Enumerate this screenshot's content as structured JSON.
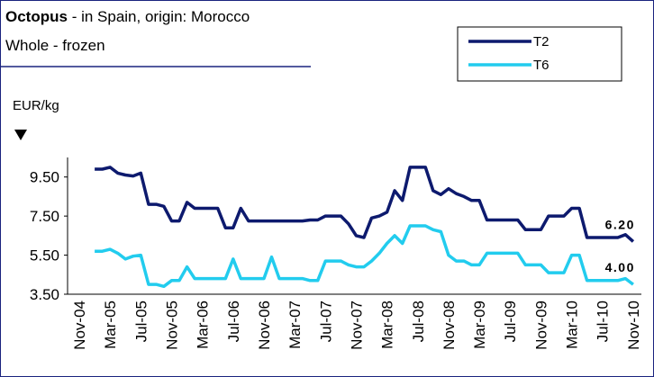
{
  "chart_data": {
    "type": "line",
    "title": "Octopus",
    "title_rest": "- in Spain, origin: Morocco",
    "subtitle": "Whole - frozen",
    "y_label": "EUR/kg",
    "categories": [
      "Nov-04",
      null,
      null,
      null,
      "Mar-05",
      null,
      null,
      null,
      "Jul-05",
      null,
      null,
      null,
      "Nov-05",
      null,
      null,
      null,
      "Mar-06",
      null,
      null,
      null,
      "Jul-06",
      null,
      null,
      null,
      "Nov-06",
      null,
      null,
      null,
      "Mar-07",
      null,
      null,
      null,
      "Jul-07",
      null,
      null,
      null,
      "Nov-07",
      null,
      null,
      null,
      "Mar-08",
      null,
      null,
      null,
      "Jul-08",
      null,
      null,
      null,
      "Nov-08",
      null,
      null,
      null,
      "Mar-09",
      null,
      null,
      null,
      "Jul-09",
      null,
      null,
      null,
      "Nov-09",
      null,
      null,
      null,
      "Mar-10",
      null,
      null,
      null,
      "Jul-10",
      null,
      null,
      null,
      "Nov-10"
    ],
    "series": [
      {
        "name": "T2",
        "color": "#0d1a6e",
        "values": [
          null,
          null,
          9.9,
          9.9,
          10.0,
          9.7,
          9.6,
          9.55,
          9.7,
          8.1,
          8.1,
          8.0,
          7.25,
          7.25,
          8.2,
          7.9,
          7.9,
          7.9,
          7.9,
          6.9,
          6.9,
          7.9,
          7.25,
          7.25,
          7.25,
          7.25,
          7.25,
          7.25,
          7.25,
          7.25,
          7.3,
          7.3,
          7.5,
          7.5,
          7.5,
          7.1,
          6.5,
          6.4,
          7.4,
          7.5,
          7.7,
          8.8,
          8.3,
          10.0,
          10.0,
          10.0,
          8.8,
          8.6,
          8.9,
          8.65,
          8.5,
          8.3,
          8.3,
          7.3,
          7.3,
          7.3,
          7.3,
          7.3,
          6.8,
          6.8,
          6.8,
          7.5,
          7.5,
          7.5,
          7.9,
          7.9,
          6.4,
          6.4,
          6.4,
          6.4,
          6.4,
          6.55,
          6.2
        ],
        "value_labels": [
          null,
          null,
          null,
          null,
          null,
          null,
          null,
          null,
          null,
          null,
          null,
          null,
          null,
          null,
          null,
          null,
          null,
          null,
          null,
          null,
          null,
          null,
          null,
          null,
          null,
          null,
          null,
          null,
          null,
          null,
          null,
          null,
          null,
          null,
          null,
          null,
          null,
          null,
          null,
          null,
          null,
          null,
          null,
          null,
          null,
          null,
          null,
          null,
          null,
          null,
          null,
          null,
          null,
          null,
          null,
          null,
          null,
          null,
          null,
          null,
          null,
          null,
          null,
          null,
          null,
          null,
          null,
          null,
          null,
          null,
          null,
          null,
          "6.20"
        ]
      },
      {
        "name": "T6",
        "color": "#22ccee",
        "values": [
          null,
          null,
          5.7,
          5.7,
          5.8,
          5.6,
          5.3,
          5.45,
          5.5,
          4.0,
          4.0,
          3.9,
          4.2,
          4.2,
          4.9,
          4.3,
          4.3,
          4.3,
          4.3,
          4.3,
          5.3,
          4.3,
          4.3,
          4.3,
          4.3,
          5.4,
          4.3,
          4.3,
          4.3,
          4.3,
          4.2,
          4.2,
          5.2,
          5.2,
          5.2,
          5.0,
          4.9,
          4.9,
          5.2,
          5.6,
          6.1,
          6.5,
          6.1,
          7.0,
          7.0,
          7.0,
          6.8,
          6.7,
          5.5,
          5.2,
          5.2,
          5.0,
          5.0,
          5.6,
          5.6,
          5.6,
          5.6,
          5.6,
          5.0,
          5.0,
          5.0,
          4.6,
          4.6,
          4.6,
          5.5,
          5.5,
          4.2,
          4.2,
          4.2,
          4.2,
          4.2,
          4.3,
          4.0
        ],
        "value_labels": [
          null,
          null,
          null,
          null,
          null,
          null,
          null,
          null,
          null,
          null,
          null,
          null,
          null,
          null,
          null,
          null,
          null,
          null,
          null,
          null,
          null,
          null,
          null,
          null,
          null,
          null,
          null,
          null,
          null,
          null,
          null,
          null,
          null,
          null,
          null,
          null,
          null,
          null,
          null,
          null,
          null,
          null,
          null,
          null,
          null,
          null,
          null,
          null,
          null,
          null,
          null,
          null,
          null,
          null,
          null,
          null,
          null,
          null,
          null,
          null,
          null,
          null,
          null,
          null,
          null,
          null,
          null,
          null,
          null,
          null,
          null,
          null,
          "4.00"
        ]
      }
    ],
    "ylim": [
      3.5,
      10.5
    ],
    "yticks": [
      {
        "value": 3.5,
        "label": "3.50"
      },
      {
        "value": 5.5,
        "label": "5.50"
      },
      {
        "value": 7.5,
        "label": "7.50"
      },
      {
        "value": 9.5,
        "label": "9.50"
      }
    ],
    "grid": false,
    "legend": "upper right"
  }
}
